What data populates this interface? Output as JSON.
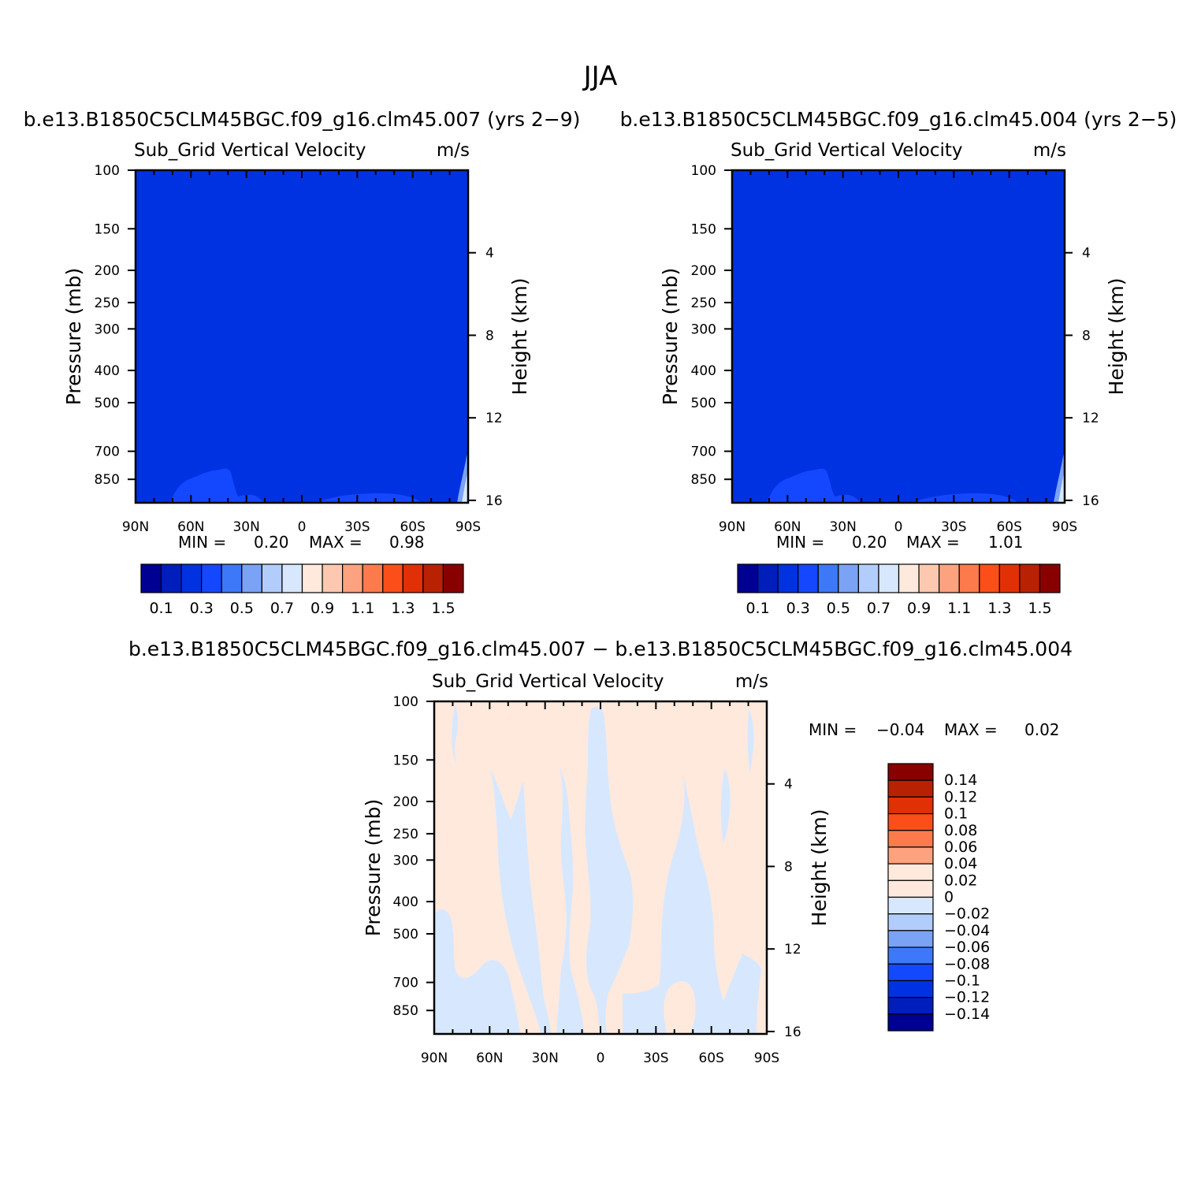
{
  "figure": {
    "title": "JJA"
  },
  "chart_data": [
    {
      "type": "heatmap",
      "case_title": "b.e13.B1850C5CLM45BGC.f09_g16.clm45.007 (yrs 2−9)",
      "variable": "Sub_Grid Vertical Velocity",
      "units": "m/s",
      "ylabel": "Pressure (mb)",
      "y2label": "Height (km)",
      "x_ticks": [
        "90N",
        "60N",
        "30N",
        "0",
        "30S",
        "60S",
        "90S"
      ],
      "y_ticks": [
        100,
        150,
        200,
        250,
        300,
        400,
        500,
        700,
        850
      ],
      "y2_ticks": [
        16,
        12,
        8,
        4
      ],
      "min_label": "MIN =",
      "min_value": "0.20",
      "max_label": "MAX =",
      "max_value": "0.98",
      "field": {
        "background_value_range": [
          0.3,
          0.4
        ],
        "lower_region_value_range": [
          0.4,
          0.5
        ],
        "near_surface_90S_value_range": [
          0.7,
          0.9
        ]
      },
      "colorbar": {
        "labels": [
          "0.1",
          "0.3",
          "0.5",
          "0.7",
          "0.9",
          "1.1",
          "1.3",
          "1.5"
        ],
        "colors": [
          "#000092",
          "#001ebb",
          "#0032e2",
          "#1448ff",
          "#3c78f7",
          "#7aa3f6",
          "#b2ccfc",
          "#d7e8fe",
          "#ffe9dd",
          "#fcc9b0",
          "#fca27e",
          "#fd7a4c",
          "#fb4e18",
          "#e13006",
          "#b92103",
          "#890000"
        ]
      }
    },
    {
      "type": "heatmap",
      "case_title": "b.e13.B1850C5CLM45BGC.f09_g16.clm45.004 (yrs 2−5)",
      "variable": "Sub_Grid Vertical Velocity",
      "units": "m/s",
      "ylabel": "Pressure (mb)",
      "y2label": "Height (km)",
      "x_ticks": [
        "90N",
        "60N",
        "30N",
        "0",
        "30S",
        "60S",
        "90S"
      ],
      "y_ticks": [
        100,
        150,
        200,
        250,
        300,
        400,
        500,
        700,
        850
      ],
      "y2_ticks": [
        16,
        12,
        8,
        4
      ],
      "min_label": "MIN =",
      "min_value": "0.20",
      "max_label": "MAX =",
      "max_value": "1.01",
      "field": {
        "background_value_range": [
          0.3,
          0.4
        ],
        "lower_region_value_range": [
          0.4,
          0.5
        ],
        "near_surface_90S_value_range": [
          0.7,
          0.9
        ]
      },
      "colorbar": {
        "labels": [
          "0.1",
          "0.3",
          "0.5",
          "0.7",
          "0.9",
          "1.1",
          "1.3",
          "1.5"
        ],
        "colors": [
          "#000092",
          "#001ebb",
          "#0032e2",
          "#1448ff",
          "#3c78f7",
          "#7aa3f6",
          "#b2ccfc",
          "#d7e8fe",
          "#ffe9dd",
          "#fcc9b0",
          "#fca27e",
          "#fd7a4c",
          "#fb4e18",
          "#e13006",
          "#b92103",
          "#890000"
        ]
      }
    },
    {
      "type": "heatmap",
      "case_title": "b.e13.B1850C5CLM45BGC.f09_g16.clm45.007 − b.e13.B1850C5CLM45BGC.f09_g16.clm45.004",
      "variable": "Sub_Grid Vertical Velocity",
      "units": "m/s",
      "ylabel": "Pressure (mb)",
      "y2label": "Height (km)",
      "x_ticks": [
        "90N",
        "60N",
        "30N",
        "0",
        "30S",
        "60S",
        "90S"
      ],
      "y_ticks": [
        100,
        150,
        200,
        250,
        300,
        400,
        500,
        700,
        850
      ],
      "y2_ticks": [
        16,
        12,
        8,
        4
      ],
      "min_label": "MIN =",
      "min_value": "−0.04",
      "max_label": "MAX =",
      "max_value": "0.02",
      "field": {
        "background_value_range": [
          0,
          0.02
        ],
        "negative_region_value_range": [
          -0.02,
          0
        ]
      },
      "colorbar": {
        "labels": [
          "0.14",
          "0.12",
          "0.1",
          "0.08",
          "0.06",
          "0.04",
          "0.02",
          "0",
          "−0.02",
          "−0.04",
          "−0.06",
          "−0.08",
          "−0.1",
          "−0.12",
          "−0.14"
        ],
        "colors": [
          "#890000",
          "#b92103",
          "#e13006",
          "#fb4e18",
          "#fd7a4c",
          "#fca27e",
          "#ffe9dd",
          "#ffe9dd",
          "#d7e8fe",
          "#b2ccfc",
          "#7aa3f6",
          "#3c78f7",
          "#1448ff",
          "#0032e2",
          "#001ebb",
          "#000092"
        ]
      }
    }
  ]
}
